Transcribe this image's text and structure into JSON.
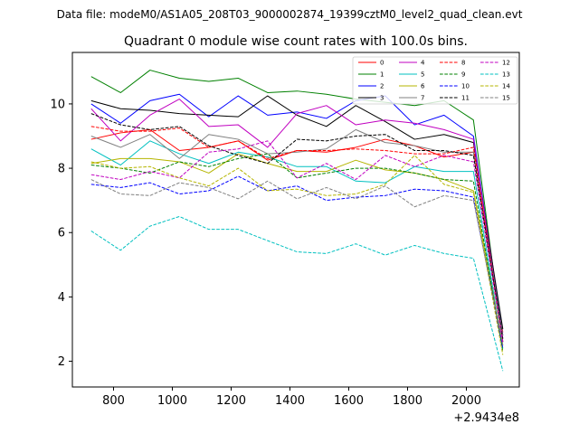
{
  "figure": {
    "suptitle": "Data file: modeM0/AS1A05_208T03_9000002874_19399cztM0_level2_quad_clean.evt"
  },
  "chart_data": {
    "type": "line",
    "title": "Quadrant 0 module wise count rates with 100.0s bins.",
    "xlabel": "",
    "ylabel": "",
    "x_offset_label": "+2.9434e8",
    "xlim": [
      660,
      2180
    ],
    "ylim": [
      1.2,
      11.6
    ],
    "xticks": [
      800,
      1000,
      1200,
      1400,
      1600,
      1800,
      2000
    ],
    "yticks": [
      2,
      4,
      6,
      8,
      10
    ],
    "legend_position": "top-right",
    "x": [
      724,
      824,
      924,
      1024,
      1124,
      1224,
      1324,
      1424,
      1524,
      1624,
      1724,
      1824,
      1924,
      2024,
      2124
    ],
    "series": [
      {
        "name": "0",
        "color": "#ff0000",
        "dash": "solid",
        "values": [
          8.9,
          9.1,
          9.2,
          8.55,
          8.65,
          8.85,
          8.25,
          8.55,
          8.5,
          8.65,
          8.9,
          8.7,
          8.35,
          8.5,
          2.9
        ]
      },
      {
        "name": "1",
        "color": "#008000",
        "dash": "solid",
        "values": [
          10.85,
          10.35,
          11.05,
          10.8,
          10.7,
          10.8,
          10.35,
          10.4,
          10.3,
          10.15,
          10.05,
          9.95,
          10.1,
          9.5,
          2.6
        ]
      },
      {
        "name": "2",
        "color": "#0000ff",
        "dash": "solid",
        "values": [
          10.0,
          9.4,
          10.1,
          10.3,
          9.6,
          10.25,
          9.65,
          9.75,
          9.55,
          10.1,
          10.25,
          9.35,
          9.65,
          9.0,
          2.8
        ]
      },
      {
        "name": "3",
        "color": "#000000",
        "dash": "solid",
        "values": [
          10.1,
          9.85,
          9.8,
          9.7,
          9.65,
          9.6,
          10.25,
          9.65,
          9.3,
          9.95,
          9.45,
          8.9,
          9.05,
          8.8,
          3.0
        ]
      },
      {
        "name": "4",
        "color": "#c000c0",
        "dash": "solid",
        "values": [
          9.85,
          8.85,
          9.65,
          10.15,
          9.3,
          9.35,
          8.65,
          9.7,
          9.95,
          9.35,
          9.5,
          9.4,
          9.2,
          8.9,
          2.7
        ]
      },
      {
        "name": "5",
        "color": "#00c0c0",
        "dash": "solid",
        "values": [
          8.6,
          8.1,
          8.85,
          8.45,
          8.15,
          8.5,
          8.35,
          8.05,
          8.05,
          7.6,
          7.55,
          8.05,
          7.9,
          7.9,
          2.4
        ]
      },
      {
        "name": "6",
        "color": "#b5b500",
        "dash": "solid",
        "values": [
          8.15,
          8.3,
          8.3,
          8.2,
          7.85,
          8.45,
          8.15,
          7.9,
          7.9,
          8.25,
          7.95,
          7.85,
          7.65,
          7.3,
          2.5
        ]
      },
      {
        "name": "7",
        "color": "#808080",
        "dash": "solid",
        "values": [
          9.0,
          8.65,
          9.05,
          8.3,
          9.05,
          8.9,
          8.45,
          8.5,
          8.6,
          9.2,
          8.8,
          8.7,
          8.5,
          8.5,
          2.8
        ]
      },
      {
        "name": "8",
        "color": "#ff0000",
        "dash": "dashed",
        "values": [
          9.3,
          9.15,
          9.15,
          9.25,
          8.65,
          8.85,
          8.3,
          8.55,
          8.55,
          8.6,
          8.55,
          8.45,
          8.45,
          8.65,
          2.6
        ]
      },
      {
        "name": "9",
        "color": "#008000",
        "dash": "dashed",
        "values": [
          8.1,
          8.0,
          7.85,
          8.2,
          8.05,
          8.3,
          8.45,
          7.7,
          7.85,
          8.0,
          8.0,
          7.85,
          7.65,
          7.6,
          2.3
        ]
      },
      {
        "name": "10",
        "color": "#0000ff",
        "dash": "dashed",
        "values": [
          7.5,
          7.4,
          7.55,
          7.2,
          7.3,
          7.75,
          7.3,
          7.45,
          7.0,
          7.1,
          7.15,
          7.35,
          7.3,
          7.1,
          2.4
        ]
      },
      {
        "name": "11",
        "color": "#000000",
        "dash": "dashed",
        "values": [
          9.7,
          9.35,
          9.2,
          9.3,
          8.7,
          8.4,
          8.15,
          8.9,
          8.85,
          9.0,
          9.05,
          8.55,
          8.55,
          8.4,
          2.7
        ]
      },
      {
        "name": "12",
        "color": "#c000c0",
        "dash": "dashed",
        "values": [
          7.8,
          7.65,
          7.9,
          7.7,
          8.5,
          8.6,
          8.85,
          7.7,
          8.15,
          7.65,
          8.4,
          8.05,
          8.4,
          8.2,
          2.6
        ]
      },
      {
        "name": "13",
        "color": "#00c0c0",
        "dash": "dashed",
        "values": [
          6.05,
          5.45,
          6.2,
          6.5,
          6.1,
          6.1,
          5.75,
          5.4,
          5.35,
          5.65,
          5.3,
          5.6,
          5.35,
          5.2,
          1.7
        ]
      },
      {
        "name": "14",
        "color": "#b5b500",
        "dash": "dashed",
        "values": [
          8.2,
          8.0,
          8.05,
          7.7,
          7.45,
          8.0,
          7.3,
          7.35,
          7.15,
          7.2,
          7.5,
          8.4,
          7.5,
          7.25,
          2.2
        ]
      },
      {
        "name": "15",
        "color": "#808080",
        "dash": "dashed",
        "values": [
          7.65,
          7.2,
          7.15,
          7.55,
          7.4,
          7.05,
          7.6,
          7.05,
          7.4,
          7.05,
          7.45,
          6.8,
          7.15,
          7.0,
          2.5
        ]
      }
    ]
  }
}
